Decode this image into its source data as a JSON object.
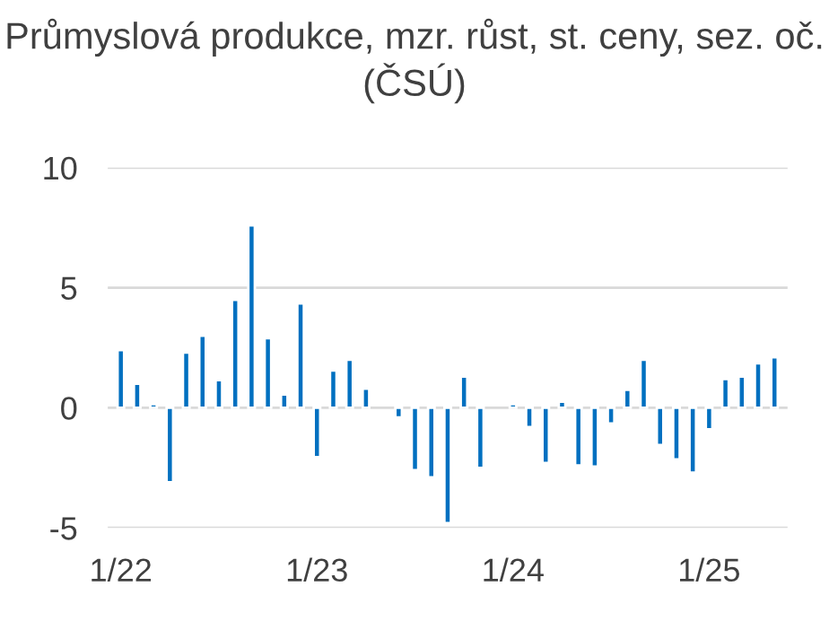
{
  "chart_data": {
    "type": "bar",
    "title": "Průmyslová produkce, mzr. růst, st. ceny, sez. oč. (ČSÚ)",
    "categories": [
      "1/22",
      null,
      null,
      null,
      null,
      null,
      null,
      null,
      null,
      null,
      null,
      null,
      "1/23",
      null,
      null,
      null,
      null,
      null,
      null,
      null,
      null,
      null,
      null,
      null,
      "1/24",
      null,
      null,
      null,
      null,
      null,
      null,
      null,
      null,
      null,
      null,
      null,
      "1/25",
      null,
      null,
      null,
      null
    ],
    "series": [
      {
        "color": "#0070c0",
        "values": [
          2.4,
          1.0,
          0.15,
          -3.1,
          2.3,
          3.0,
          1.15,
          4.5,
          7.6,
          2.9,
          0.55,
          4.35,
          -2.05,
          1.55,
          2.0,
          0.8,
          null,
          -0.4,
          -2.6,
          -2.9,
          -4.8,
          1.3,
          -2.5,
          null,
          0.15,
          -0.8,
          -2.3,
          0.25,
          -2.4,
          -2.45,
          -0.65,
          0.75,
          2.0,
          -1.55,
          -2.15,
          -2.7,
          -0.9,
          1.2,
          1.3,
          1.85,
          2.1
        ]
      }
    ],
    "ylim": [
      -5,
      10
    ],
    "yticks": [
      -5,
      0,
      5,
      10
    ],
    "grid": "y",
    "legend": false
  }
}
